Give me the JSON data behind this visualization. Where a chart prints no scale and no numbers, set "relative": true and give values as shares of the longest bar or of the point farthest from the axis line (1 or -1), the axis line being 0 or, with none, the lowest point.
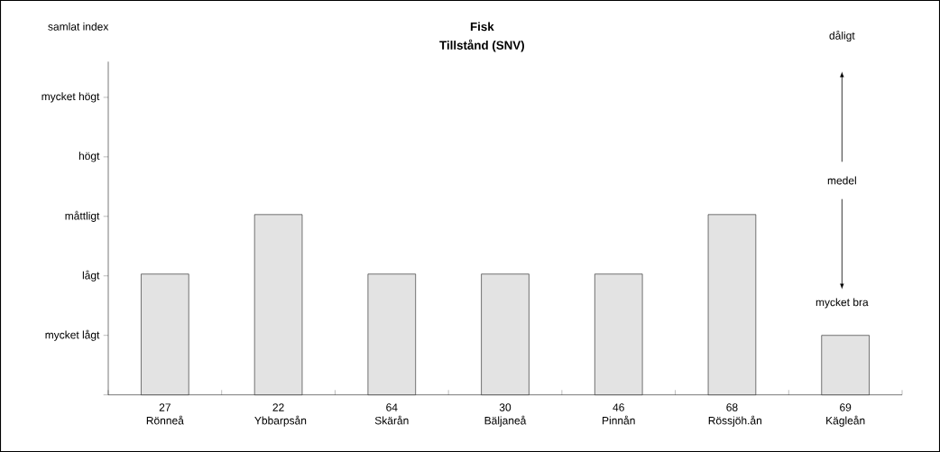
{
  "chart_data": {
    "type": "bar",
    "title": "Fisk",
    "subtitle": "Tillstånd (SNV)",
    "categories": [
      "27 Rönneå",
      "22 Ybbarpsån",
      "64 Skärån",
      "30 Bäljaneå",
      "46 Pinnån",
      "68 Rössjöh.ån",
      "69 Kägleån"
    ],
    "values": [
      0.67,
      1,
      0.67,
      0.67,
      0.67,
      1,
      0.33
    ],
    "color": "#e3e3e3",
    "relative": true,
    "annotations": [
      "samlat index",
      "mycket lågt",
      "lågt",
      "måttligt",
      "högt",
      "mycket högt",
      "dåligt",
      "medel",
      "mycket bra"
    ],
    "grid": false
  }
}
